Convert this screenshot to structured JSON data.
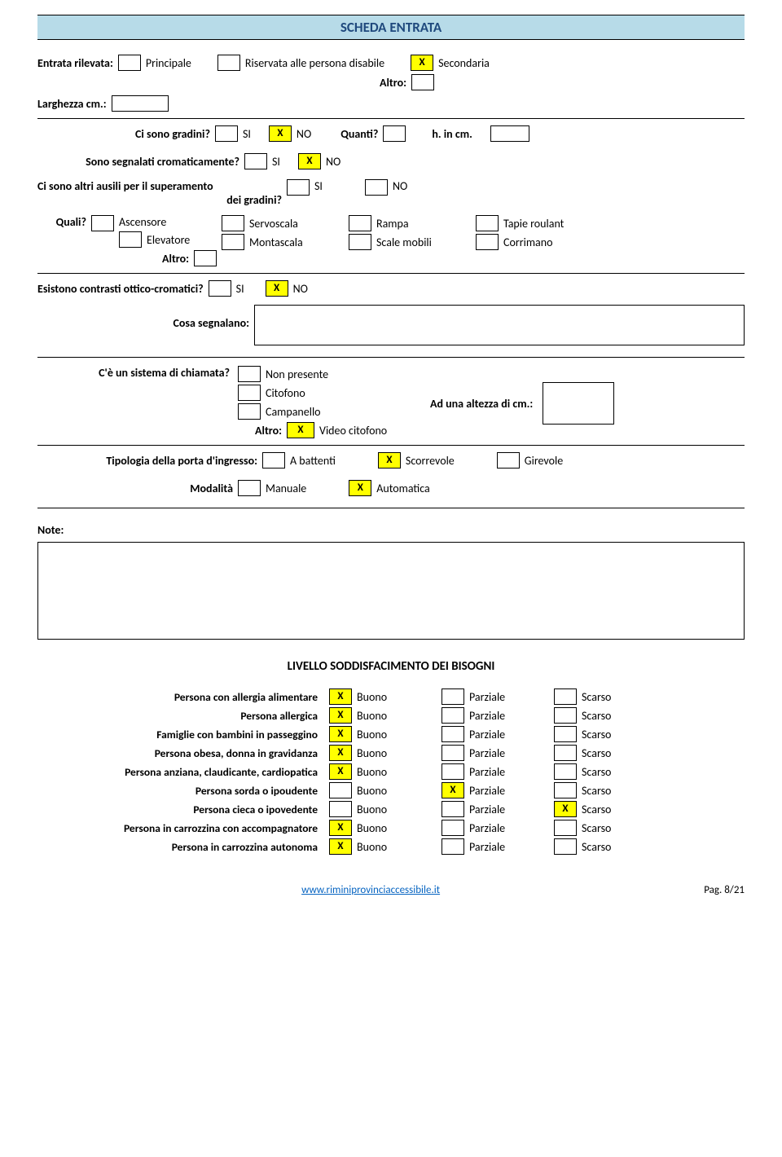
{
  "header": {
    "title": "SCHEDA ENTRATA"
  },
  "entrata": {
    "label": "Entrata rilevata:",
    "options": {
      "principale": "Principale",
      "riservata": "Riservata alle persona disabile",
      "secondaria": "Secondaria",
      "altro": "Altro:"
    },
    "larghezza": "Larghezza cm.:"
  },
  "gradini": {
    "q1": "Ci sono gradini?",
    "si": "SI",
    "no": "NO",
    "quanti": "Quanti?",
    "hincm": "h. in cm."
  },
  "segnalati": {
    "q": "Sono segnalati cromaticamente?"
  },
  "ausili": {
    "q": "Ci sono altri ausili per il superamento dei gradini?",
    "q_line1": "Ci sono altri ausili per il superamento",
    "q_line2": "dei gradini?"
  },
  "quali": {
    "label": "Quali?",
    "ascensore": "Ascensore",
    "elevatore": "Elevatore",
    "altro": "Altro:",
    "servoscala": "Servoscala",
    "montascala": "Montascala",
    "rampa": "Rampa",
    "scalemobili": "Scale mobili",
    "tapie": "Tapie roulant",
    "corrimano": "Corrimano"
  },
  "contrasti": {
    "q": "Esistono contrasti ottico-cromatici?",
    "cosa": "Cosa segnalano:"
  },
  "chiamata": {
    "q": "C'è un sistema di chiamata?",
    "nonpresente": "Non presente",
    "citofono": "Citofono",
    "campanello": "Campanello",
    "video": "Video citofono",
    "altro": "Altro:",
    "altezza": "Ad una altezza di cm.:"
  },
  "porta": {
    "tipologia": "Tipologia della porta d'ingresso:",
    "battenti": "A battenti",
    "scorrevole": "Scorrevole",
    "girevole": "Girevole",
    "modalita": "Modalità",
    "manuale": "Manuale",
    "automatica": "Automatica"
  },
  "note": {
    "label": "Note:"
  },
  "livello": {
    "title": "LIVELLO SODDISFACIMENTO DEI BISOGNI",
    "buono": "Buono",
    "parziale": "Parziale",
    "scarso": "Scarso",
    "rows": [
      {
        "label": "Persona con allergia alimentare",
        "buono": true,
        "parziale": false,
        "scarso": false
      },
      {
        "label": "Persona allergica",
        "buono": true,
        "parziale": false,
        "scarso": false
      },
      {
        "label": "Famiglie con bambini in passeggino",
        "buono": true,
        "parziale": false,
        "scarso": false
      },
      {
        "label": "Persona obesa, donna in gravidanza",
        "buono": true,
        "parziale": false,
        "scarso": false
      },
      {
        "label": "Persona anziana, claudicante, cardiopatica",
        "buono": true,
        "parziale": false,
        "scarso": false
      },
      {
        "label": "Persona sorda o ipoudente",
        "buono": false,
        "parziale": true,
        "scarso": false
      },
      {
        "label": "Persona cieca o ipovedente",
        "buono": false,
        "parziale": false,
        "scarso": true
      },
      {
        "label": "Persona in carrozzina con accompagnatore",
        "buono": true,
        "parziale": false,
        "scarso": false
      },
      {
        "label": "Persona in carrozzina autonoma",
        "buono": true,
        "parziale": false,
        "scarso": false
      }
    ]
  },
  "footer": {
    "url": "www.riminiprovinciaccessibile.it",
    "page": "Pag. 8/21"
  },
  "style": {
    "checked_bg": "#ffff00",
    "header_bg": "#b7dbe8",
    "header_text": "#1f497d",
    "x": "X"
  }
}
